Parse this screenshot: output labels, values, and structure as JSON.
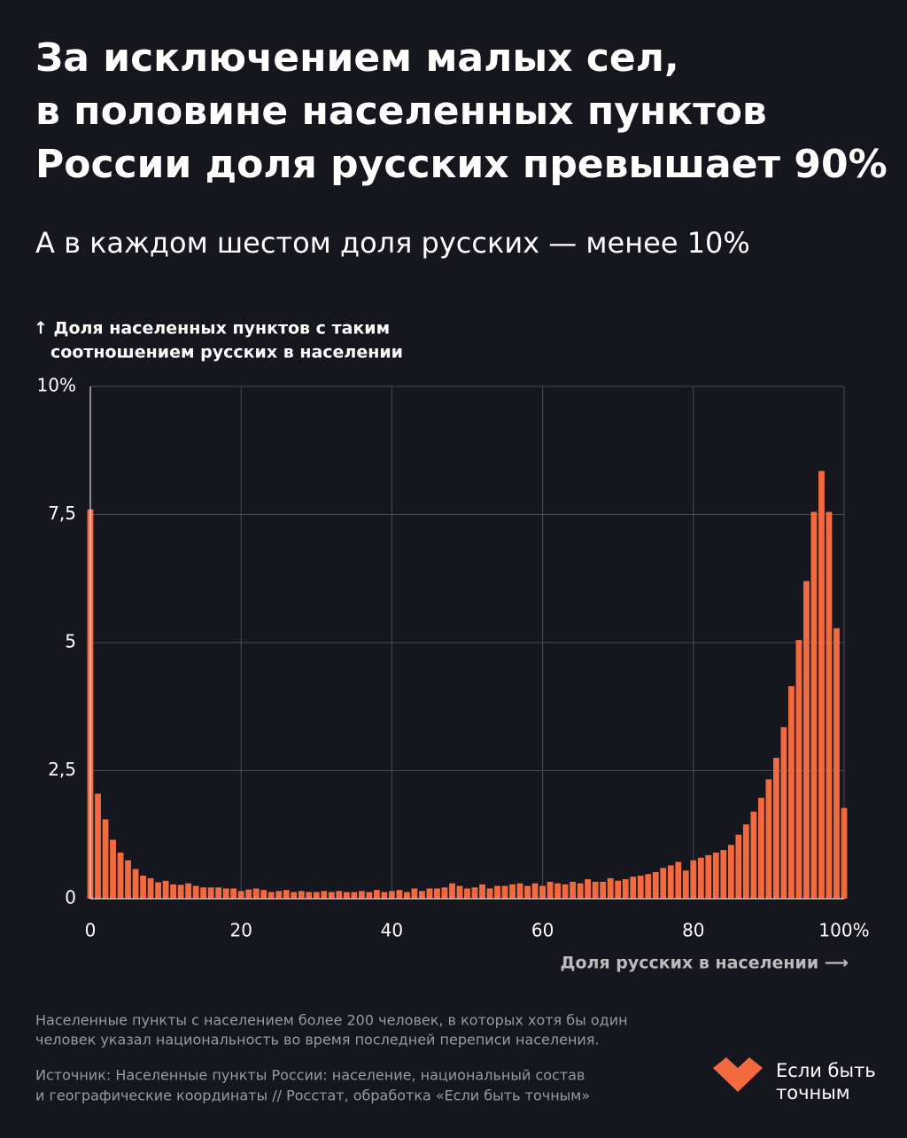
{
  "chart_data": {
    "type": "bar",
    "title": [
      "За исключением малых сел,",
      "в половине населенных пунктов",
      "России доля русских превышает 90%"
    ],
    "subtitle": "А в каждом шестом доля русских — менее 10%",
    "y_label": [
      "↑ Доля населенных пунктов с таким",
      "соотношением русских в населении"
    ],
    "x_label": "Доля русских в населении ⟶",
    "x": [
      0,
      1,
      2,
      3,
      4,
      5,
      6,
      7,
      8,
      9,
      10,
      11,
      12,
      13,
      14,
      15,
      16,
      17,
      18,
      19,
      20,
      21,
      22,
      23,
      24,
      25,
      26,
      27,
      28,
      29,
      30,
      31,
      32,
      33,
      34,
      35,
      36,
      37,
      38,
      39,
      40,
      41,
      42,
      43,
      44,
      45,
      46,
      47,
      48,
      49,
      50,
      51,
      52,
      53,
      54,
      55,
      56,
      57,
      58,
      59,
      60,
      61,
      62,
      63,
      64,
      65,
      66,
      67,
      68,
      69,
      70,
      71,
      72,
      73,
      74,
      75,
      76,
      77,
      78,
      79,
      80,
      81,
      82,
      83,
      84,
      85,
      86,
      87,
      88,
      89,
      90,
      91,
      92,
      93,
      94,
      95,
      96,
      97,
      98,
      99,
      100
    ],
    "values": [
      7.6,
      2.05,
      1.55,
      1.15,
      0.9,
      0.75,
      0.58,
      0.45,
      0.4,
      0.32,
      0.35,
      0.28,
      0.27,
      0.3,
      0.25,
      0.22,
      0.22,
      0.22,
      0.2,
      0.2,
      0.15,
      0.18,
      0.2,
      0.17,
      0.13,
      0.15,
      0.17,
      0.13,
      0.15,
      0.13,
      0.13,
      0.15,
      0.13,
      0.15,
      0.13,
      0.13,
      0.15,
      0.13,
      0.17,
      0.13,
      0.15,
      0.17,
      0.13,
      0.2,
      0.15,
      0.2,
      0.2,
      0.22,
      0.3,
      0.25,
      0.2,
      0.22,
      0.28,
      0.2,
      0.25,
      0.25,
      0.28,
      0.3,
      0.25,
      0.3,
      0.25,
      0.33,
      0.3,
      0.28,
      0.33,
      0.3,
      0.38,
      0.33,
      0.33,
      0.4,
      0.35,
      0.38,
      0.43,
      0.45,
      0.48,
      0.52,
      0.6,
      0.65,
      0.72,
      0.55,
      0.75,
      0.8,
      0.85,
      0.9,
      0.95,
      1.05,
      1.25,
      1.45,
      1.7,
      1.97,
      2.33,
      2.75,
      3.35,
      4.15,
      5.05,
      6.2,
      7.55,
      8.35,
      7.55,
      5.28,
      1.77
    ],
    "color": "#f26a3d",
    "xlim": [
      0,
      100
    ],
    "xticks": [
      0,
      20,
      40,
      60,
      80,
      {
        "value": 100,
        "label": "100%"
      }
    ],
    "ylim": [
      0,
      10
    ],
    "yticks": [
      0,
      {
        "value": 2.5,
        "label": "2,5"
      },
      5,
      {
        "value": 7.5,
        "label": "7,5"
      },
      {
        "value": 10,
        "label": "10%"
      }
    ],
    "grid": true
  },
  "footnote": [
    "Населенные пункты с населением более 200 человек, в которых хотя бы один",
    "человек указал национальность во время последней переписи населения."
  ],
  "source": [
    "Источник: Населенные пункты России: население, национальный состав",
    "и географические координаты // Росстат, обработка «Если быть точным»"
  ],
  "logo": [
    "Если быть",
    "точным"
  ]
}
